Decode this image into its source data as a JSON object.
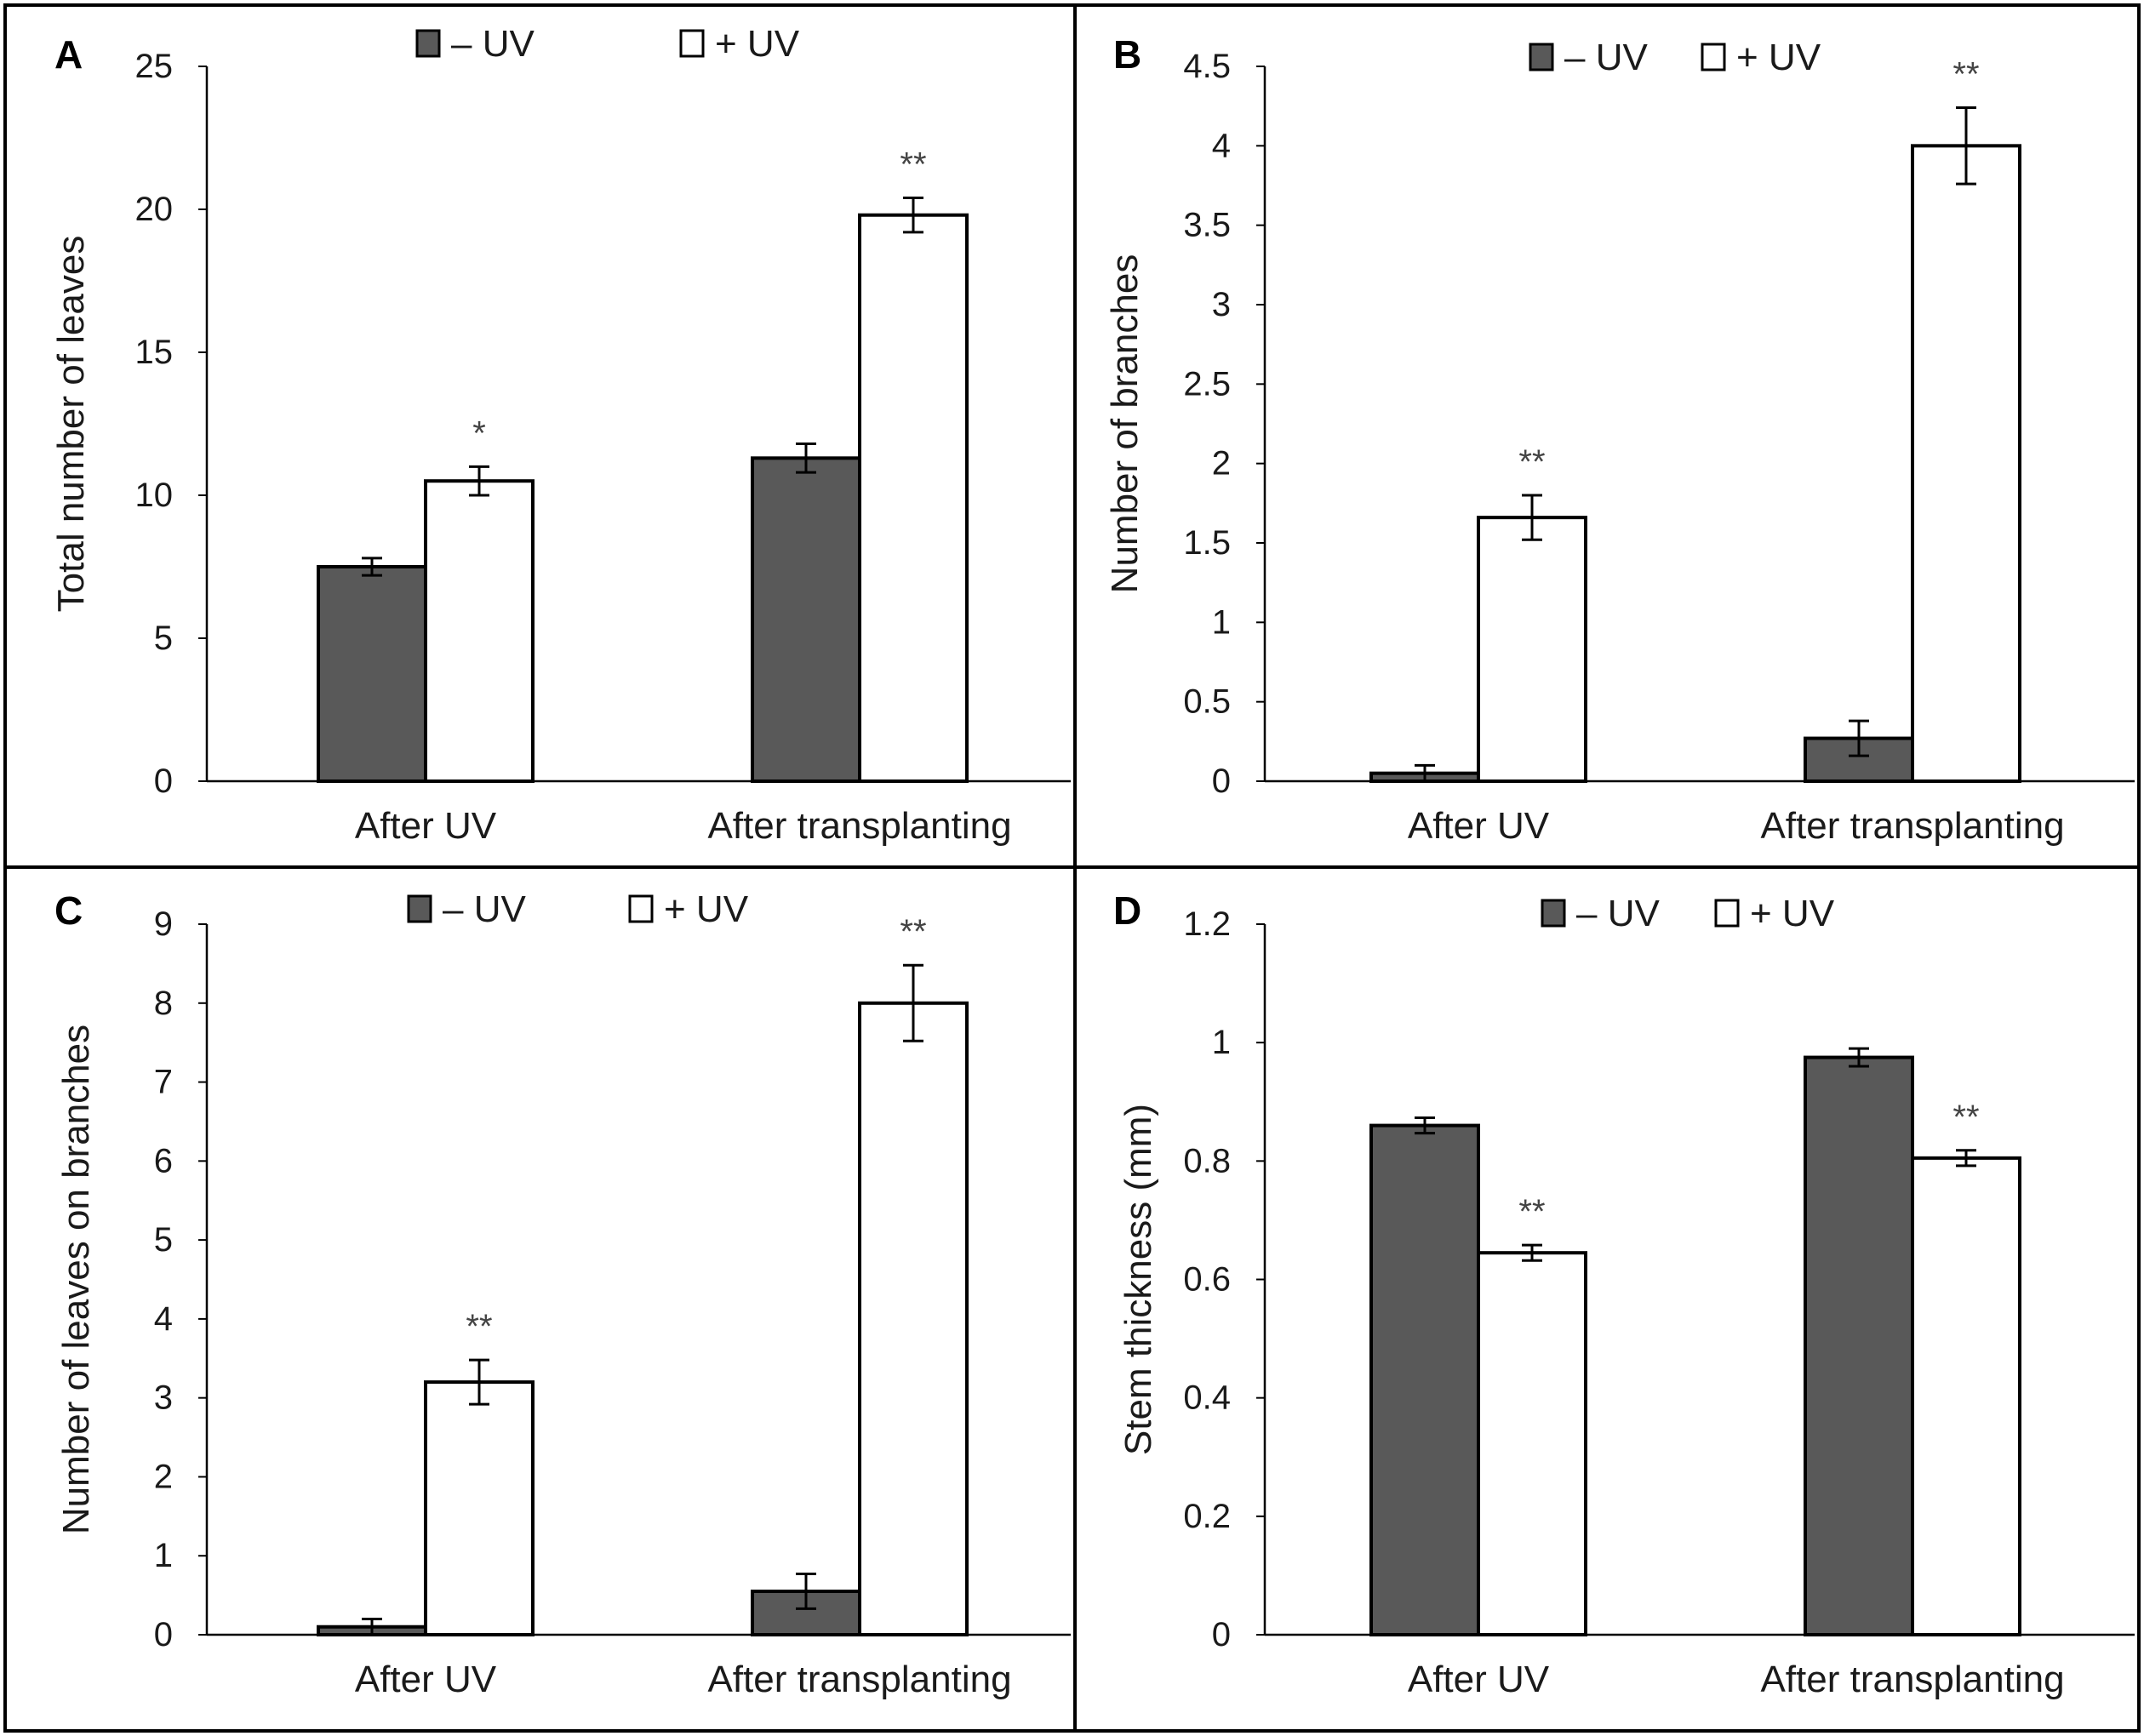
{
  "colors": {
    "minus_uv": "#595959",
    "plus_uv": "#ffffff",
    "stroke": "#000000"
  },
  "chart_data": [
    {
      "panel": "A",
      "type": "bar",
      "categories": [
        "After UV",
        "After transplanting"
      ],
      "series": [
        {
          "name": "– UV",
          "values": [
            7.5,
            11.3
          ],
          "errors": [
            0.3,
            0.5
          ]
        },
        {
          "name": "+ UV",
          "values": [
            10.5,
            19.8
          ],
          "errors": [
            0.5,
            0.6
          ]
        }
      ],
      "significance": [
        [
          "",
          ""
        ],
        [
          "*",
          "**"
        ]
      ],
      "ylabel": "Total number of leaves",
      "ylim": [
        0,
        25
      ],
      "yticks": [
        0,
        5,
        10,
        15,
        20,
        25
      ],
      "ytick_labels": [
        "0",
        "5",
        "10",
        "15",
        "20",
        "25"
      ]
    },
    {
      "panel": "B",
      "type": "bar",
      "categories": [
        "After UV",
        "After transplanting"
      ],
      "series": [
        {
          "name": "– UV",
          "values": [
            0.05,
            0.27
          ],
          "errors": [
            0.05,
            0.11
          ]
        },
        {
          "name": "+ UV",
          "values": [
            1.66,
            4.0
          ],
          "errors": [
            0.14,
            0.24
          ]
        }
      ],
      "significance": [
        [
          "",
          ""
        ],
        [
          "**",
          "**"
        ]
      ],
      "ylabel": "Number of branches",
      "ylim": [
        0,
        4.5
      ],
      "yticks": [
        0,
        0.5,
        1,
        1.5,
        2,
        2.5,
        3,
        3.5,
        4,
        4.5
      ],
      "ytick_labels": [
        "0",
        "0.5",
        "1",
        "1.5",
        "2",
        "2.5",
        "3",
        "3.5",
        "4",
        "4.5"
      ]
    },
    {
      "panel": "C",
      "type": "bar",
      "categories": [
        "After UV",
        "After transplanting"
      ],
      "series": [
        {
          "name": "– UV",
          "values": [
            0.1,
            0.55
          ],
          "errors": [
            0.1,
            0.22
          ]
        },
        {
          "name": "+ UV",
          "values": [
            3.2,
            8.0
          ],
          "errors": [
            0.28,
            0.48
          ]
        }
      ],
      "significance": [
        [
          "",
          ""
        ],
        [
          "**",
          "**"
        ]
      ],
      "ylabel": "Number of leaves on branches",
      "ylim": [
        0,
        9
      ],
      "yticks": [
        0,
        1,
        2,
        3,
        4,
        5,
        6,
        7,
        8,
        9
      ],
      "ytick_labels": [
        "0",
        "1",
        "2",
        "3",
        "4",
        "5",
        "6",
        "7",
        "8",
        "9"
      ]
    },
    {
      "panel": "D",
      "type": "bar",
      "categories": [
        "After UV",
        "After transplanting"
      ],
      "series": [
        {
          "name": "– UV",
          "values": [
            0.86,
            0.975
          ],
          "errors": [
            0.013,
            0.015
          ]
        },
        {
          "name": "+ UV",
          "values": [
            0.645,
            0.805
          ],
          "errors": [
            0.013,
            0.013
          ]
        }
      ],
      "significance": [
        [
          "",
          ""
        ],
        [
          "**",
          "**"
        ]
      ],
      "ylabel": "Stem thickness (mm)",
      "ylim": [
        0,
        1.2
      ],
      "yticks": [
        0,
        0.2,
        0.4,
        0.6,
        0.8,
        1,
        1.2
      ],
      "ytick_labels": [
        "0",
        "0.2",
        "0.4",
        "0.6",
        "0.8",
        "1",
        "1.2"
      ]
    }
  ]
}
